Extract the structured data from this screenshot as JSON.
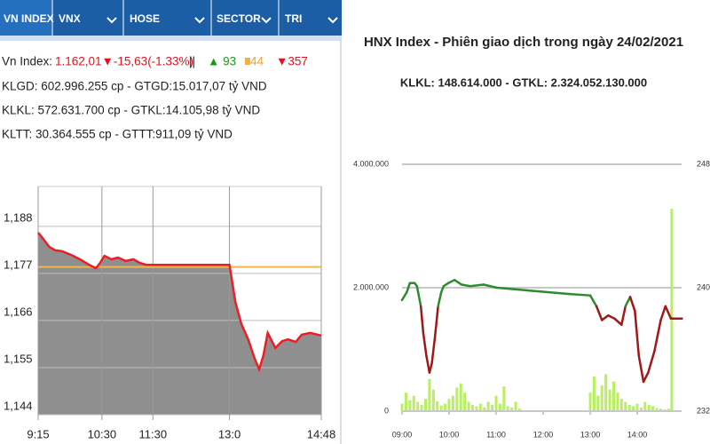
{
  "tabs": [
    "VN INDEX",
    "VNX",
    "HOSE",
    "SECTOR",
    "TRI"
  ],
  "info": {
    "line1": {
      "label": "Vn Index:",
      "index": "1.162,01▼-15,63(-1.33%)",
      "sep": "||",
      "up": "▲ 93",
      "flat": "44",
      "down": "▼357"
    },
    "line2": "KLGD: 602.996.255 cp - GTGD:15.017,07 tỷ VND",
    "line3": "KLKL: 572.631.700 cp - GTKL:14.105,98 tỷ VND",
    "line4": "KLTT: 30.364.555 cp - GTTT:911,09 tỷ VND"
  },
  "chart_data": [
    {
      "type": "area",
      "x": [
        555,
        560,
        568,
        575,
        583,
        594,
        604,
        615,
        623,
        628,
        633,
        641,
        649,
        658,
        667,
        674,
        682,
        690,
        780,
        787,
        794,
        802,
        810,
        815,
        820,
        825,
        834,
        842,
        849,
        858,
        865,
        875,
        888
      ],
      "values": [
        1186.5,
        1185.3,
        1183.2,
        1182.4,
        1182.2,
        1181.3,
        1180.3,
        1179,
        1178.2,
        1179.5,
        1181.1,
        1180.3,
        1180.7,
        1179.9,
        1180.3,
        1179.5,
        1179,
        1179,
        1179,
        1170.3,
        1165.2,
        1161.6,
        1156.9,
        1154.6,
        1157.9,
        1163.1,
        1159.6,
        1161.2,
        1161.6,
        1161,
        1162.7,
        1163.1,
        1162.5
      ],
      "color": "#ee1c25",
      "fill_color": "#8f8f8f",
      "reference": 1178.5,
      "reference_color": "#f0b64a",
      "xlim": [
        555,
        888
      ],
      "xticks": [
        {
          "value": 555,
          "label": "9:15"
        },
        {
          "value": 630,
          "label": "10:30"
        },
        {
          "value": 690,
          "label": "11:30"
        },
        {
          "value": 780,
          "label": "13:0"
        },
        {
          "value": 888,
          "label": "14:48"
        }
      ],
      "ylim": [
        1144,
        1197.3
      ],
      "yticks": [
        {
          "value": 1144,
          "label": "1,144"
        },
        {
          "value": 1155,
          "label": "1,155"
        },
        {
          "value": 1166,
          "label": "1,166"
        },
        {
          "value": 1177,
          "label": "1,177"
        },
        {
          "value": 1188,
          "label": "1,188"
        }
      ],
      "grid": true
    },
    {
      "type": "combo",
      "title": "HNX Index - Phiên giao dịch trong ngày 24/02/2021",
      "subtitle": "KLKL: 148.614.000 - GTKL: 2.324.052.130.000",
      "series": [
        {
          "type": "bar",
          "axis": "y",
          "color": "#b8ef63",
          "x": [
            540,
            545,
            550,
            555,
            560,
            565,
            570,
            575,
            580,
            585,
            590,
            595,
            600,
            605,
            610,
            615,
            620,
            625,
            630,
            635,
            640,
            645,
            650,
            655,
            660,
            665,
            670,
            675,
            680,
            685,
            690,
            780,
            785,
            790,
            795,
            800,
            805,
            810,
            815,
            820,
            825,
            830,
            835,
            840,
            845,
            850,
            855,
            860,
            865,
            870,
            875,
            880,
            884
          ],
          "values": [
            120000,
            300000,
            180000,
            250000,
            150000,
            100000,
            200000,
            520000,
            350000,
            160000,
            90000,
            120000,
            200000,
            250000,
            380000,
            450000,
            300000,
            150000,
            100000,
            80000,
            120000,
            60000,
            150000,
            100000,
            250000,
            120000,
            400000,
            80000,
            60000,
            150000,
            40000,
            300000,
            560000,
            250000,
            420000,
            600000,
            350000,
            480000,
            300000,
            200000,
            150000,
            100000,
            80000,
            120000,
            60000,
            150000,
            100000,
            80000,
            50000,
            40000,
            30000,
            40000,
            3280000
          ]
        },
        {
          "type": "line",
          "axis": "y2",
          "up_color": "#2e8b2e",
          "down_color": "#a01818",
          "reference": 239.1,
          "x": [
            540,
            546,
            550,
            556,
            559,
            564,
            567,
            571,
            575,
            578,
            582,
            586,
            590,
            593,
            599,
            607,
            616,
            627,
            644,
            661,
            684,
            706,
            729,
            752,
            780,
            788,
            795,
            803,
            811,
            820,
            825,
            831,
            837,
            842,
            848,
            854,
            862,
            870,
            876,
            883,
            888,
            897
          ],
          "values": [
            239.2,
            239.7,
            240.3,
            240.3,
            240.1,
            238.8,
            237.1,
            235.6,
            234.5,
            235.1,
            236.8,
            238.8,
            239.7,
            240.1,
            240.3,
            240.5,
            240.2,
            240.1,
            240.2,
            240,
            239.9,
            239.8,
            239.7,
            239.6,
            239.5,
            238.8,
            237.9,
            238.2,
            238,
            237.6,
            238.8,
            239.4,
            238.5,
            235.6,
            233.9,
            234.5,
            235.9,
            237.9,
            238.8,
            238,
            238,
            238
          ]
        }
      ],
      "xlim": [
        540,
        900
      ],
      "xticks": [
        {
          "value": 540,
          "label": "09:00"
        },
        {
          "value": 600,
          "label": "10:00"
        },
        {
          "value": 660,
          "label": "11:00"
        },
        {
          "value": 720,
          "label": "12:00"
        },
        {
          "value": 780,
          "label": "13:00"
        },
        {
          "value": 840,
          "label": "14:00"
        }
      ],
      "ylim": [
        0,
        4000000
      ],
      "yticks": [
        0,
        {
          "value": 2000000,
          "label": "2.000.000"
        },
        {
          "value": 4000000,
          "label": "4.000.000"
        }
      ],
      "y2lim": [
        232,
        248
      ],
      "y2ticks": [
        232,
        240,
        248
      ],
      "grid": true
    }
  ]
}
